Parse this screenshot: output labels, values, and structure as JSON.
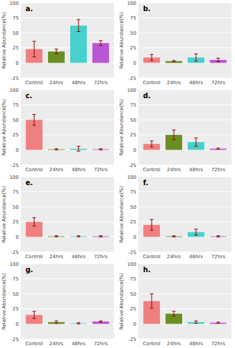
{
  "chart_data": [
    {
      "type": "bar",
      "title": "a.",
      "ylabel": "Relative Abundance(%)",
      "categories": [
        "Control",
        "24hrs",
        "48hrs",
        "72hrs"
      ],
      "values": [
        23,
        19,
        62,
        33
      ],
      "errors": [
        13,
        4,
        10,
        4
      ],
      "colors": [
        "#F08080",
        "#6B8E23",
        "#48D1CC",
        "#BA55D3"
      ],
      "ylim": [
        -25,
        100
      ],
      "yticks": [
        -25,
        0,
        25,
        50,
        75,
        100
      ],
      "grid": true
    },
    {
      "type": "bar",
      "title": "b.",
      "ylabel": "Relative Abundance(%)",
      "categories": [
        "Control",
        "24hrs",
        "48hrs",
        "72hrs"
      ],
      "values": [
        9,
        3,
        9,
        5
      ],
      "errors": [
        5,
        1,
        6,
        3
      ],
      "colors": [
        "#F08080",
        "#6B8E23",
        "#48D1CC",
        "#BA55D3"
      ],
      "ylim": [
        -25,
        100
      ],
      "yticks": [
        -25,
        0,
        25,
        50,
        75,
        100
      ],
      "grid": true
    },
    {
      "type": "bar",
      "title": "c.",
      "ylabel": "Relative Abundance(%)",
      "categories": [
        "Control",
        "24hrs",
        "48hrs",
        "72hrs"
      ],
      "values": [
        50,
        1,
        2,
        1
      ],
      "errors": [
        9,
        1,
        4,
        1
      ],
      "colors": [
        "#F08080",
        "#6B8E23",
        "#48D1CC",
        "#BA55D3"
      ],
      "ylim": [
        -25,
        100
      ],
      "yticks": [
        -25,
        0,
        25,
        50,
        75,
        100
      ],
      "grid": true
    },
    {
      "type": "bar",
      "title": "d.",
      "ylabel": "Relative Abundance(%)",
      "categories": [
        "Control",
        "24hrs",
        "48hrs",
        "72hrs"
      ],
      "values": [
        10,
        25,
        13,
        2
      ],
      "errors": [
        5,
        8,
        7,
        1
      ],
      "colors": [
        "#F08080",
        "#6B8E23",
        "#48D1CC",
        "#BA55D3"
      ],
      "ylim": [
        -25,
        100
      ],
      "yticks": [
        -25,
        0,
        25,
        50,
        75,
        100
      ],
      "grid": true
    },
    {
      "type": "bar",
      "title": "e.",
      "ylabel": "Relative Abundance(%)",
      "categories": [
        "Control",
        "24hrs",
        "48hrs",
        "72hrs"
      ],
      "values": [
        25,
        1,
        1,
        1
      ],
      "errors": [
        7,
        1,
        1,
        1
      ],
      "colors": [
        "#F08080",
        "#6B8E23",
        "#48D1CC",
        "#BA55D3"
      ],
      "ylim": [
        -25,
        100
      ],
      "yticks": [
        -25,
        0,
        25,
        50,
        75,
        100
      ],
      "grid": true
    },
    {
      "type": "bar",
      "title": "f.",
      "ylabel": "Relative Abundance(%)",
      "categories": [
        "Control",
        "24hrs",
        "48hrs",
        "72hrs"
      ],
      "values": [
        20,
        1,
        8,
        1
      ],
      "errors": [
        9,
        1,
        5,
        1
      ],
      "colors": [
        "#F08080",
        "#6B8E23",
        "#48D1CC",
        "#BA55D3"
      ],
      "ylim": [
        -25,
        100
      ],
      "yticks": [
        -25,
        0,
        25,
        50,
        75,
        100
      ],
      "grid": true
    },
    {
      "type": "bar",
      "title": "g.",
      "ylabel": "Relative Abundance(%)",
      "categories": [
        "Control",
        "24hrs",
        "48hrs",
        "72hrs"
      ],
      "values": [
        15,
        3,
        1,
        4
      ],
      "errors": [
        6,
        2,
        1,
        1
      ],
      "colors": [
        "#F08080",
        "#6B8E23",
        "#48D1CC",
        "#BA55D3"
      ],
      "ylim": [
        -25,
        100
      ],
      "yticks": [
        -25,
        0,
        25,
        50,
        75,
        100
      ],
      "grid": true
    },
    {
      "type": "bar",
      "title": "h.",
      "ylabel": "Relative Abundance(%)",
      "categories": [
        "Control",
        "24hrs",
        "48hrs",
        "72hrs"
      ],
      "values": [
        38,
        17,
        3,
        2
      ],
      "errors": [
        12,
        4,
        2,
        1
      ],
      "colors": [
        "#F08080",
        "#6B8E23",
        "#48D1CC",
        "#BA55D3"
      ],
      "ylim": [
        -25,
        100
      ],
      "yticks": [
        -25,
        0,
        25,
        50,
        75,
        100
      ],
      "grid": true
    }
  ]
}
